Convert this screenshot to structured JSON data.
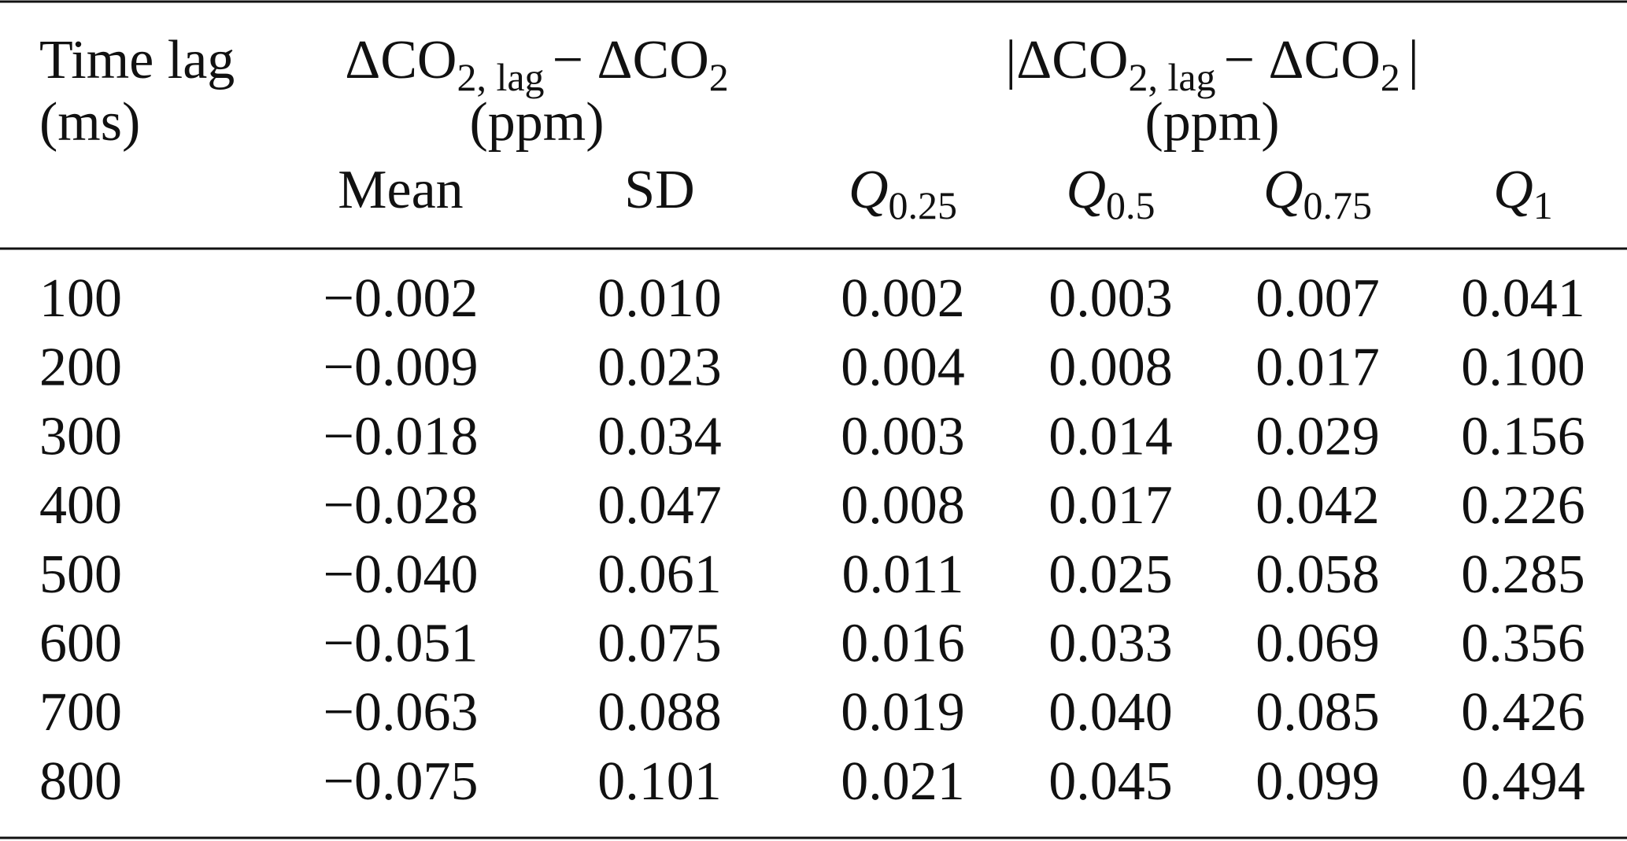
{
  "header": {
    "time_lag": [
      "Time lag",
      "(ms)"
    ],
    "diff": {
      "parts": [
        "ΔCO",
        "2, lag",
        "− ΔCO",
        "2"
      ],
      "unit": "(ppm)"
    },
    "absdiff": {
      "parts": [
        "|ΔCO",
        "2, lag",
        "− ΔCO",
        "2",
        "|"
      ],
      "unit": "(ppm)"
    },
    "columns": [
      {
        "label": "Mean"
      },
      {
        "label": "SD"
      },
      {
        "symbol": "Q",
        "sub": "0.25"
      },
      {
        "symbol": "Q",
        "sub": "0.5"
      },
      {
        "symbol": "Q",
        "sub": "0.75"
      },
      {
        "symbol": "Q",
        "sub": "1"
      }
    ]
  },
  "rows": [
    [
      "100",
      "−0.002",
      "0.010",
      "0.002",
      "0.003",
      "0.007",
      "0.041"
    ],
    [
      "200",
      "−0.009",
      "0.023",
      "0.004",
      "0.008",
      "0.017",
      "0.100"
    ],
    [
      "300",
      "−0.018",
      "0.034",
      "0.003",
      "0.014",
      "0.029",
      "0.156"
    ],
    [
      "400",
      "−0.028",
      "0.047",
      "0.008",
      "0.017",
      "0.042",
      "0.226"
    ],
    [
      "500",
      "−0.040",
      "0.061",
      "0.011",
      "0.025",
      "0.058",
      "0.285"
    ],
    [
      "600",
      "−0.051",
      "0.075",
      "0.016",
      "0.033",
      "0.069",
      "0.356"
    ],
    [
      "700",
      "−0.063",
      "0.088",
      "0.019",
      "0.040",
      "0.085",
      "0.426"
    ],
    [
      "800",
      "−0.075",
      "0.101",
      "0.021",
      "0.045",
      "0.099",
      "0.494"
    ]
  ]
}
